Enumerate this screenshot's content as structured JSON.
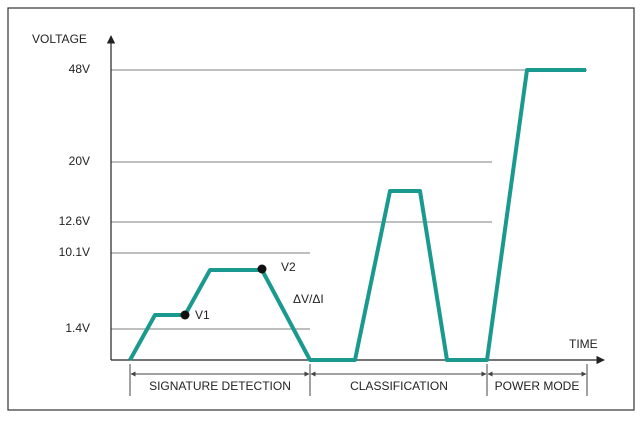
{
  "axes": {
    "y_label": "VOLTAGE",
    "x_label": "TIME"
  },
  "levels": [
    "48V",
    "20V",
    "12.6V",
    "10.1V",
    "1.4V"
  ],
  "points": {
    "v1": "V1",
    "v2": "V2",
    "slope": "ΔV/ΔI"
  },
  "phases": [
    "SIGNATURE DETECTION",
    "CLASSIFICATION",
    "POWER MODE"
  ]
}
